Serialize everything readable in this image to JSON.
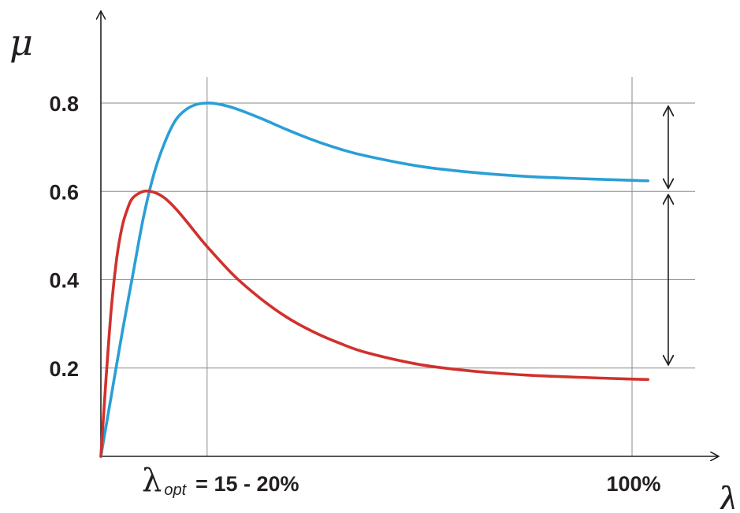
{
  "chart_data": {
    "type": "line",
    "ylabel": "μ",
    "xlabel": "λ",
    "yticks": [
      "0.2",
      "0.4",
      "0.6",
      "0.8"
    ],
    "ylim": [
      0,
      1.0
    ],
    "xlim": [
      0,
      115
    ],
    "x_annotations": {
      "optimum": {
        "symbol": "λ",
        "subscript": "opt",
        "text": "= 15 - 20%",
        "x": 20
      },
      "full": {
        "text": "100%",
        "x": 100
      }
    },
    "grid": true,
    "series": [
      {
        "color": "#2a9fd6",
        "x": [
          0,
          2,
          4,
          6,
          8,
          10,
          12,
          14,
          16,
          18,
          20,
          22,
          25,
          30,
          35,
          40,
          45,
          50,
          60,
          70,
          80,
          90,
          100,
          103
        ],
        "y": [
          0,
          0.14,
          0.28,
          0.41,
          0.54,
          0.64,
          0.71,
          0.76,
          0.785,
          0.797,
          0.8,
          0.798,
          0.789,
          0.766,
          0.74,
          0.716,
          0.696,
          0.68,
          0.657,
          0.643,
          0.634,
          0.629,
          0.625,
          0.624
        ]
      },
      {
        "color": "#d0312d",
        "x": [
          0,
          1,
          2,
          3,
          4,
          5,
          6,
          8,
          10,
          12,
          14,
          16,
          18,
          20,
          25,
          30,
          35,
          40,
          45,
          50,
          60,
          70,
          80,
          90,
          100,
          103
        ],
        "y": [
          0,
          0.18,
          0.34,
          0.45,
          0.52,
          0.56,
          0.585,
          0.6,
          0.598,
          0.585,
          0.562,
          0.534,
          0.504,
          0.475,
          0.41,
          0.358,
          0.315,
          0.282,
          0.256,
          0.235,
          0.208,
          0.193,
          0.184,
          0.179,
          0.175,
          0.174
        ]
      }
    ],
    "range_arrows": [
      {
        "from": 0.6,
        "to": 0.8
      },
      {
        "from": 0.2,
        "to": 0.6
      }
    ]
  }
}
